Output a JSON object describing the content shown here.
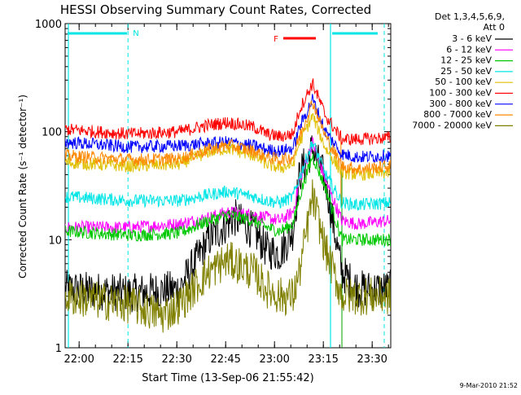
{
  "chart_data": {
    "type": "line",
    "title": "HESSI Observing Summary Count Rates, Corrected",
    "xlabel": "Start Time (13-Sep-06 21:55:42)",
    "ylabel": "Corrected Count Rate (s⁻¹ detector⁻¹)",
    "yscale": "log",
    "xlim_minutes_from_start": [
      0,
      100
    ],
    "ylim": [
      1,
      1000
    ],
    "x_ticks": [
      "22:00",
      "22:15",
      "22:30",
      "22:45",
      "23:00",
      "23:15",
      "23:30"
    ],
    "y_ticks": [
      "1",
      "10",
      "100",
      "1000"
    ],
    "legend": {
      "placement": "right-outside",
      "header": [
        "Det 1,3,4,5,6,9,",
        "Att 0"
      ]
    },
    "series": [
      {
        "name": "3 - 6 keV",
        "color": "#000000",
        "x": [
          0,
          20,
          35,
          44,
          52,
          58,
          62,
          66,
          70,
          72,
          76,
          80,
          85,
          90,
          100
        ],
        "values": [
          3.5,
          3.2,
          3.5,
          10,
          16,
          12,
          8,
          7.5,
          12,
          40,
          70,
          35,
          5,
          3.5,
          3.5
        ]
      },
      {
        "name": "6 - 12 keV",
        "color": "#ff00ff",
        "x": [
          0,
          20,
          35,
          44,
          50,
          58,
          62,
          66,
          70,
          72,
          76,
          80,
          85,
          90,
          100
        ],
        "values": [
          13,
          13,
          14,
          16,
          18,
          17,
          16,
          15,
          18,
          35,
          80,
          35,
          15,
          14,
          15
        ]
      },
      {
        "name": "12 - 25 keV",
        "color": "#00c800",
        "x": [
          0,
          20,
          35,
          44,
          50,
          58,
          62,
          66,
          70,
          72,
          76,
          80,
          85,
          90,
          100
        ],
        "values": [
          12,
          11,
          11.5,
          15,
          17,
          15,
          13,
          12,
          14,
          25,
          60,
          30,
          10,
          10,
          10
        ]
      },
      {
        "name": "25 - 50 keV",
        "color": "#00e5e5",
        "x": [
          0,
          20,
          35,
          44,
          50,
          58,
          62,
          66,
          70,
          72,
          76,
          80,
          85,
          90,
          100
        ],
        "values": [
          25,
          23,
          23,
          26,
          28,
          25,
          23,
          22,
          25,
          38,
          80,
          40,
          22,
          21,
          22
        ]
      },
      {
        "name": "50 - 100 keV",
        "color": "#e0c000",
        "x": [
          0,
          20,
          35,
          44,
          50,
          58,
          62,
          66,
          70,
          72,
          76,
          80,
          85,
          90,
          100
        ],
        "values": [
          52,
          48,
          50,
          65,
          70,
          60,
          50,
          46,
          50,
          80,
          140,
          70,
          42,
          40,
          42
        ]
      },
      {
        "name": "100 - 300 keV",
        "color": "#ff0000",
        "x": [
          0,
          20,
          35,
          44,
          50,
          58,
          62,
          66,
          70,
          72,
          76,
          80,
          85,
          90,
          100
        ],
        "values": [
          105,
          95,
          100,
          115,
          122,
          110,
          95,
          90,
          95,
          160,
          280,
          140,
          85,
          85,
          88
        ]
      },
      {
        "name": "300 - 800 keV",
        "color": "#0000ff",
        "x": [
          0,
          20,
          35,
          44,
          50,
          58,
          62,
          66,
          70,
          72,
          76,
          80,
          85,
          90,
          100
        ],
        "values": [
          80,
          72,
          74,
          78,
          80,
          74,
          68,
          66,
          70,
          110,
          200,
          100,
          62,
          58,
          60
        ]
      },
      {
        "name": "800 - 7000 keV",
        "color": "#ff8800",
        "x": [
          0,
          20,
          35,
          44,
          50,
          58,
          62,
          66,
          70,
          72,
          76,
          80,
          85,
          90,
          100
        ],
        "values": [
          60,
          55,
          56,
          68,
          75,
          66,
          58,
          55,
          58,
          90,
          190,
          90,
          48,
          45,
          48
        ]
      },
      {
        "name": "7000 - 20000 keV",
        "color": "#808000",
        "x": [
          0,
          20,
          30,
          35,
          44,
          50,
          58,
          62,
          66,
          70,
          72,
          76,
          80,
          85,
          90,
          100
        ],
        "values": [
          3,
          2.5,
          2,
          2.5,
          5,
          6.5,
          5,
          3.5,
          3,
          3,
          5,
          25,
          8,
          3,
          3,
          3
        ]
      }
    ],
    "annotations": [
      {
        "label": "N",
        "color": "#00e5e5"
      },
      {
        "label": "F",
        "color": "#ff0000"
      }
    ]
  },
  "footer": {
    "timestamp": "9-Mar-2010 21:52"
  }
}
